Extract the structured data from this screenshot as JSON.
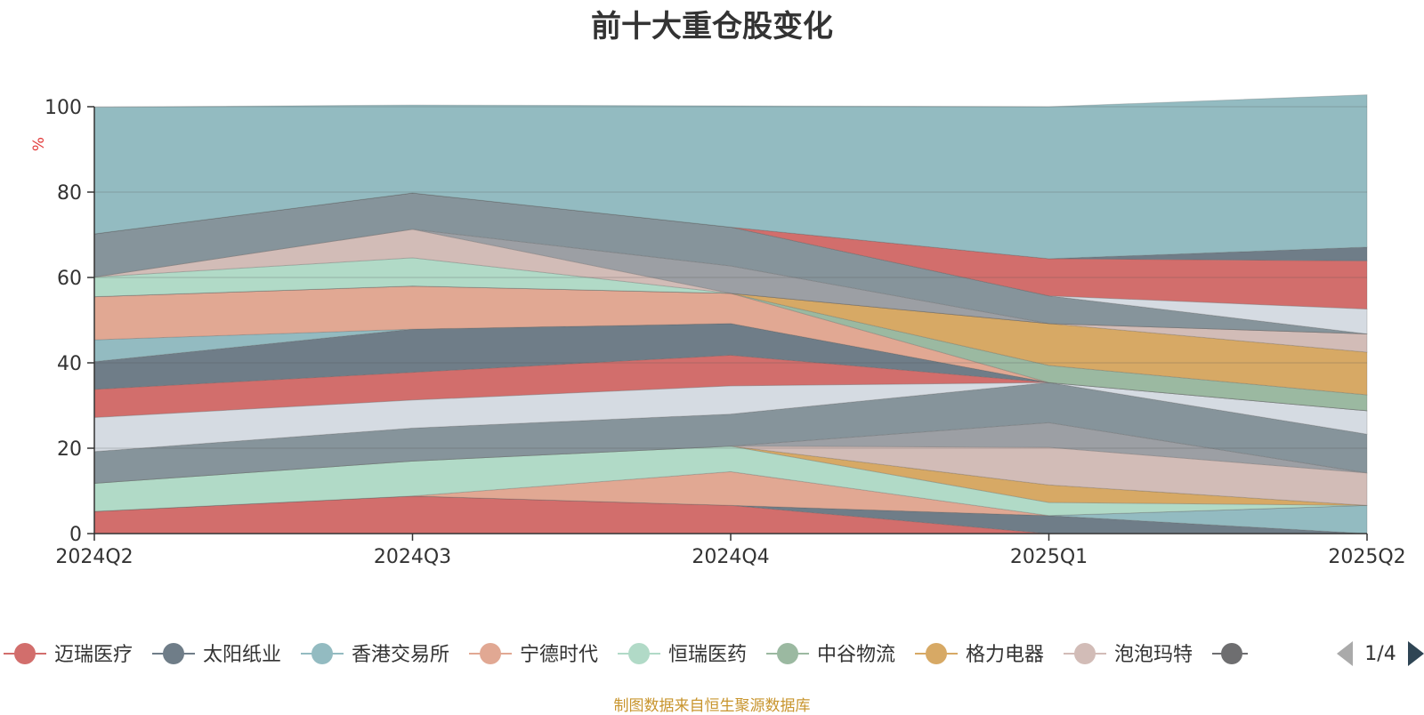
{
  "chart_data": {
    "type": "area",
    "title": "前十大重仓股变化",
    "ylabel": "%",
    "ylim": [
      0,
      100
    ],
    "yticks": [
      0,
      20,
      40,
      60,
      80,
      100
    ],
    "x": [
      "2024Q2",
      "2024Q3",
      "2024Q4",
      "2025Q1",
      "2025Q2"
    ],
    "stacked": true,
    "grid": true,
    "legend_position": "bottom",
    "legend_page": "1/4",
    "series": [
      {
        "name": "迈瑞医疗",
        "color": "#d26e6c",
        "values": [
          5.2,
          8.8,
          6.6,
          0,
          0
        ]
      },
      {
        "name": "太阳纸业",
        "color": "#6f7d88",
        "values": [
          0,
          0,
          0,
          4.2,
          0
        ]
      },
      {
        "name": "香港交易所",
        "color": "#93bbc1",
        "values": [
          0,
          0,
          0,
          0,
          6.6
        ]
      },
      {
        "name": "宁德时代",
        "color": "#e1a893",
        "values": [
          0,
          0,
          7.9,
          0,
          0
        ]
      },
      {
        "name": "恒瑞医药",
        "color": "#b1dac7",
        "values": [
          6.6,
          8.2,
          6.0,
          3.1,
          0
        ]
      },
      {
        "name": "中谷物流",
        "color": "#9bb9a1",
        "values": [
          0,
          0,
          0,
          0,
          0
        ]
      },
      {
        "name": "格力电器",
        "color": "#d7a965",
        "values": [
          0,
          0,
          0,
          4.1,
          0
        ]
      },
      {
        "name": "泡泡玛特",
        "color": "#d2bcb7",
        "values": [
          0,
          0,
          0,
          8.8,
          7.6
        ]
      },
      {
        "name": "",
        "color": "#9c9fa4",
        "values": [
          0,
          0,
          0,
          5.8,
          0
        ]
      },
      {
        "name": "",
        "color": "#86949b",
        "values": [
          7.4,
          7.7,
          7.5,
          9.4,
          9.1
        ]
      },
      {
        "name": "",
        "color": "#d5dbe2",
        "values": [
          8.0,
          6.6,
          6.6,
          0,
          5.5
        ]
      },
      {
        "name": "",
        "color": "#d26e6c",
        "values": [
          6.6,
          6.5,
          7.2,
          0,
          0
        ]
      },
      {
        "name": "",
        "color": "#6f7d88",
        "values": [
          6.5,
          10.1,
          7.4,
          0,
          0
        ]
      },
      {
        "name": "",
        "color": "#93bbc1",
        "values": [
          5.1,
          0,
          0,
          0,
          0
        ]
      },
      {
        "name": "",
        "color": "#e1a893",
        "values": [
          10.1,
          10.1,
          7.1,
          0,
          0
        ]
      },
      {
        "name": "",
        "color": "#9bb9a1",
        "values": [
          0,
          0,
          0,
          4.0,
          3.7
        ]
      },
      {
        "name": "",
        "color": "#d7a965",
        "values": [
          0,
          0,
          0,
          9.8,
          10.0
        ]
      },
      {
        "name": "",
        "color": "#d2bcb7",
        "values": [
          0,
          0,
          0,
          0,
          4.3
        ]
      },
      {
        "name": "",
        "color": "#b1dac7",
        "values": [
          4.6,
          6.6,
          0,
          0,
          0
        ]
      },
      {
        "name": "",
        "color": "#d2bcb7",
        "values": [
          0,
          6.7,
          0,
          0,
          0
        ]
      },
      {
        "name": "",
        "color": "#9c9fa4",
        "values": [
          0,
          0,
          6.4,
          0,
          0
        ]
      },
      {
        "name": "",
        "color": "#86949b",
        "values": [
          10.1,
          8.5,
          9.1,
          6.5,
          0
        ]
      },
      {
        "name": "",
        "color": "#d5dbe2",
        "values": [
          0,
          0,
          0,
          0,
          5.8
        ]
      },
      {
        "name": "",
        "color": "#d26e6c",
        "values": [
          0,
          0,
          0,
          8.7,
          11.3
        ]
      },
      {
        "name": "",
        "color": "#6f7d88",
        "values": [
          0,
          0,
          0,
          0,
          3.2
        ]
      },
      {
        "name": "",
        "color": "#93bbc1",
        "values": [
          29.7,
          20.6,
          28.4,
          35.6,
          35.7
        ]
      }
    ]
  },
  "footer": {
    "source": "制图数据来自恒生聚源数据库"
  }
}
